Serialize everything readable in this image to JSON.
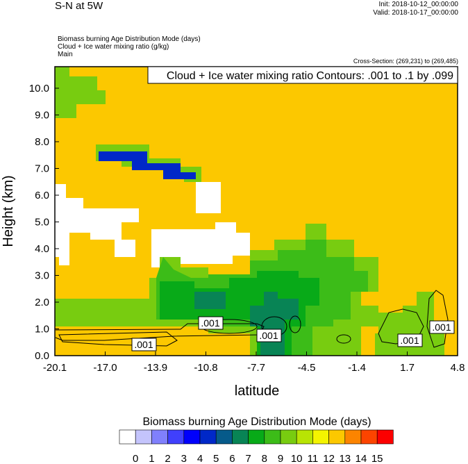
{
  "header": {
    "title": "S-N at 5W",
    "init": "Init: 2018-10-12_00:00:00",
    "valid": "Valid: 2018-10-17_00:00:00",
    "fields": [
      "Biomass burning Age Distribution Mode   (days)",
      "Cloud + Ice water mixing ratio   (g/kg)",
      "Main"
    ],
    "cross_section": "Cross-Section: (269,231) to (269,485)"
  },
  "chart_data": {
    "type": "heatmap",
    "title": "S-N at 5W",
    "contour_title": "Cloud + Ice water mixing ratio Contours: .001 to .1 by .099",
    "xlabel": "latitude",
    "ylabel": "Height (km)",
    "xlim": [
      -20.1,
      4.8
    ],
    "ylim": [
      0,
      10.8
    ],
    "xticks": [
      "-20.1",
      "-17.0",
      "-13.9",
      "-10.8",
      "-7.7",
      "-4.5",
      "-1.4",
      "1.7",
      "4.8"
    ],
    "yticks": [
      "0.0",
      "1.0",
      "2.0",
      "3.0",
      "4.0",
      "5.0",
      "6.0",
      "7.0",
      "8.0",
      "9.0",
      "10.0"
    ],
    "contour_labels": [
      ".001",
      ".001",
      ".001",
      ".001",
      ".001"
    ],
    "colorbar": {
      "title": "Biomass burning Age Distribution Mode  (days)",
      "labels": [
        "0",
        "1",
        "2",
        "3",
        "4",
        "5",
        "6",
        "7",
        "8",
        "9",
        "10",
        "11",
        "12",
        "13",
        "14",
        "15"
      ],
      "colors": [
        "#ffffff",
        "#c4c4fc",
        "#8080fc",
        "#4040fc",
        "#0000fc",
        "#0028c8",
        "#065a8a",
        "#088455",
        "#08aa18",
        "#3cbc18",
        "#78cc10",
        "#b8e404",
        "#f4f400",
        "#fcc800",
        "#fc8400",
        "#fc4400",
        "#fc0000"
      ]
    }
  }
}
